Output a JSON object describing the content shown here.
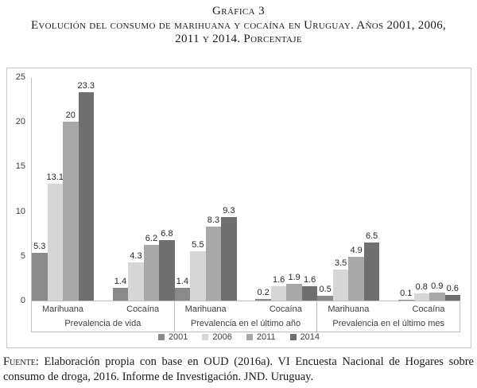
{
  "title": {
    "line1": "Gráfica 3",
    "line2": "Evolución del consumo de marihuana y cocaína en Uruguay. Años 2001, 2006, 2011 y 2014. Porcentaje"
  },
  "chart_data": {
    "type": "bar",
    "title": "Evolución del consumo de marihuana y cocaína en Uruguay. Años 2001, 2006, 2011 y 2014. Porcentaje",
    "ylabel": "Porcentaje",
    "ylim": [
      0,
      25
    ],
    "yticks": [
      25,
      20,
      15,
      10,
      5,
      0
    ],
    "grid": false,
    "legend_position": "bottom",
    "legend": [
      "2001",
      "2006",
      "2011",
      "2014"
    ],
    "colors": [
      "#8a8a8a",
      "#d6d6d6",
      "#a8a8a8",
      "#6f6f6f"
    ],
    "groups": [
      {
        "label": "Prevalencia de vida",
        "subgroups": [
          {
            "label": "Marihuana",
            "values": [
              5.3,
              13.1,
              20,
              23.3
            ]
          },
          {
            "label": "Cocaína",
            "values": [
              1.4,
              4.3,
              6.2,
              6.8
            ]
          }
        ]
      },
      {
        "label": "Prevalencia en el último año",
        "subgroups": [
          {
            "label": "Marihuana",
            "values": [
              1.4,
              5.5,
              8.3,
              9.3
            ]
          },
          {
            "label": "Cocaína",
            "values": [
              0.2,
              1.6,
              1.9,
              1.6
            ]
          }
        ]
      },
      {
        "label": "Prevalencia en el último mes",
        "subgroups": [
          {
            "label": "Marihuana",
            "values": [
              0.5,
              3.5,
              4.9,
              6.5
            ]
          },
          {
            "label": "Cocaína",
            "values": [
              0.1,
              0.8,
              0.9,
              0.6
            ]
          }
        ]
      }
    ]
  },
  "footer": {
    "source_label": "Fuente:",
    "source_text": " Elaboración propia con base en OUD (2016a). VI Encuesta Nacional de Hogares sobre consumo de droga, 2016. Informe de Investigación. JND. Uruguay."
  }
}
